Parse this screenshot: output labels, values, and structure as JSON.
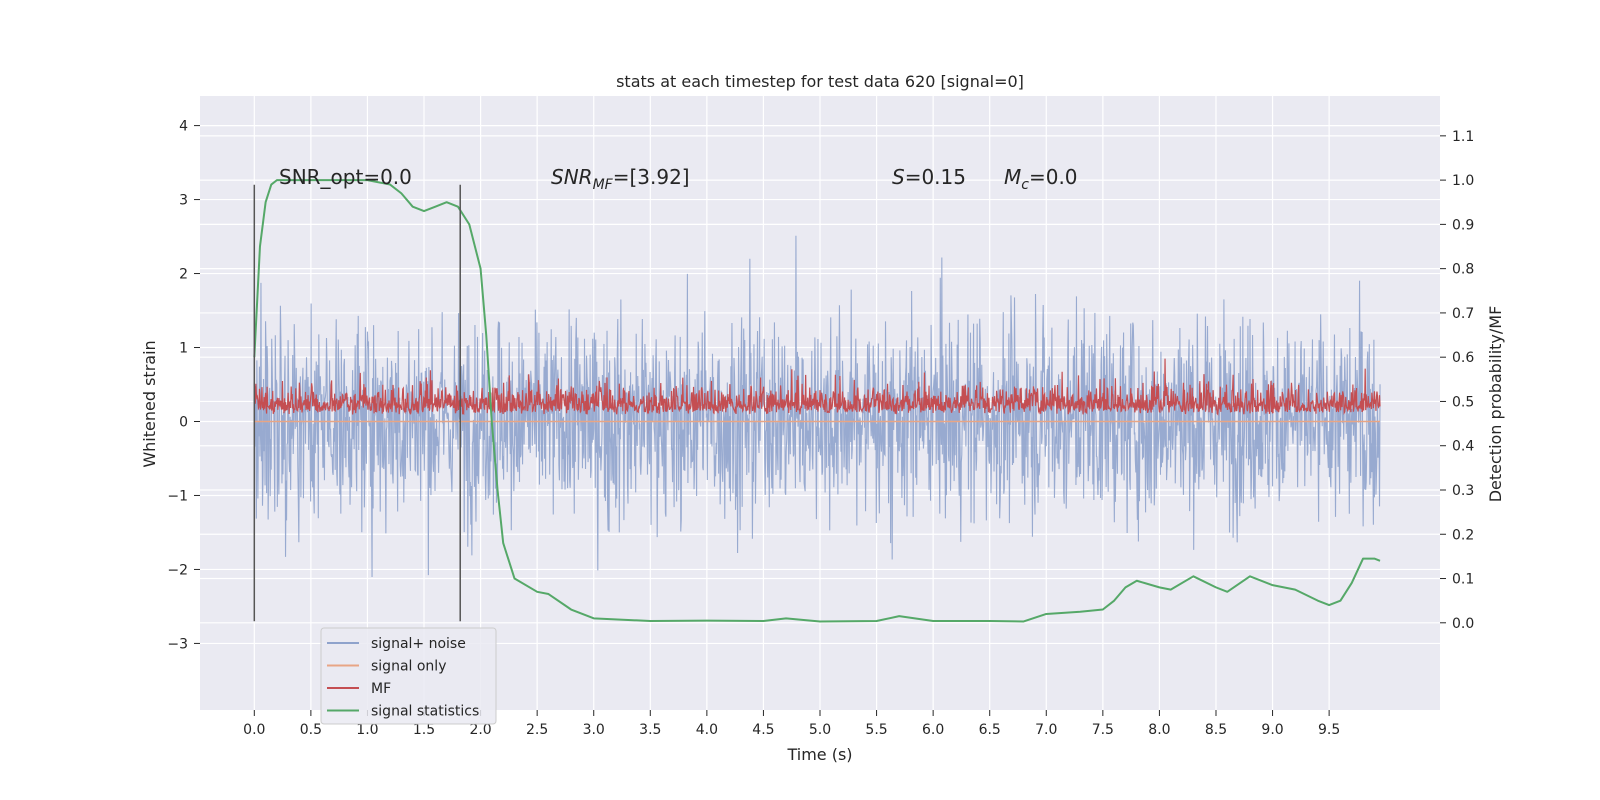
{
  "chart_data": {
    "type": "line",
    "title": "stats at each timestep for test data 620 [signal=0]",
    "xlabel": "Time (s)",
    "ylabel_left": "Whitened strain",
    "ylabel_right": "Detection probability/MF",
    "xlim": [
      -0.48,
      10.48
    ],
    "ylim_left": [
      -3.9,
      4.4
    ],
    "ylim_right": [
      -0.197,
      1.19
    ],
    "xticks": [
      "0.0",
      "0.5",
      "1.0",
      "1.5",
      "2.0",
      "2.5",
      "3.0",
      "3.5",
      "4.0",
      "4.5",
      "5.0",
      "5.5",
      "6.0",
      "6.5",
      "7.0",
      "7.5",
      "8.0",
      "8.5",
      "9.0",
      "9.5"
    ],
    "yticks_left": [
      "4",
      "3",
      "2",
      "1",
      "0",
      "−1",
      "−2",
      "−3"
    ],
    "yticks_right": [
      "1.1",
      "1.0",
      "0.9",
      "0.8",
      "0.7",
      "0.6",
      "0.5",
      "0.4",
      "0.3",
      "0.2",
      "0.1",
      "0.0"
    ],
    "grid": true,
    "legend_position": "lower-left",
    "annotations": {
      "snr_opt": "SNR_opt=0.0",
      "snr_mf_base": "SNR",
      "snr_mf_sub": "MF",
      "snr_mf_rest": "=[3.92]",
      "s_base": "S",
      "s_rest": "=0.15",
      "mc_base": "M",
      "mc_sub": "c",
      "mc_rest": "=0.0"
    },
    "vlines_x": [
      0.0,
      1.82
    ],
    "vline_range_left": [
      -2.7,
      3.2
    ],
    "series": [
      {
        "name": "signal+ noise",
        "color": "#8fa3cc",
        "axis": "left",
        "kind": "noise",
        "range": [
          -3.5,
          4.0
        ]
      },
      {
        "name": "signal only",
        "color": "#e8a585",
        "axis": "left",
        "kind": "flat",
        "value": 0.0
      },
      {
        "name": "MF",
        "color": "#c44e52",
        "axis": "right",
        "kind": "noise",
        "range": [
          0.47,
          0.6
        ]
      },
      {
        "name": "signal statistics",
        "color": "#55a868",
        "axis": "right",
        "kind": "line",
        "x": [
          0.0,
          0.05,
          0.1,
          0.15,
          0.2,
          0.4,
          0.7,
          1.0,
          1.2,
          1.3,
          1.4,
          1.5,
          1.6,
          1.7,
          1.8,
          1.9,
          2.0,
          2.05,
          2.1,
          2.15,
          2.2,
          2.3,
          2.5,
          2.6,
          2.8,
          3.0,
          3.5,
          4.0,
          4.5,
          4.7,
          5.0,
          5.5,
          5.7,
          6.0,
          6.5,
          6.8,
          7.0,
          7.3,
          7.5,
          7.6,
          7.7,
          7.8,
          8.0,
          8.1,
          8.3,
          8.5,
          8.6,
          8.8,
          9.0,
          9.2,
          9.4,
          9.5,
          9.6,
          9.7,
          9.8,
          9.9,
          9.95
        ],
        "y": [
          0.6,
          0.85,
          0.95,
          0.99,
          1.0,
          1.0,
          1.0,
          1.0,
          0.99,
          0.97,
          0.94,
          0.93,
          0.94,
          0.95,
          0.94,
          0.9,
          0.8,
          0.65,
          0.45,
          0.3,
          0.18,
          0.1,
          0.07,
          0.065,
          0.03,
          0.01,
          0.004,
          0.005,
          0.004,
          0.01,
          0.003,
          0.004,
          0.015,
          0.004,
          0.004,
          0.003,
          0.02,
          0.025,
          0.03,
          0.05,
          0.08,
          0.095,
          0.08,
          0.075,
          0.105,
          0.08,
          0.07,
          0.105,
          0.085,
          0.075,
          0.05,
          0.04,
          0.05,
          0.09,
          0.145,
          0.145,
          0.14
        ]
      }
    ]
  }
}
